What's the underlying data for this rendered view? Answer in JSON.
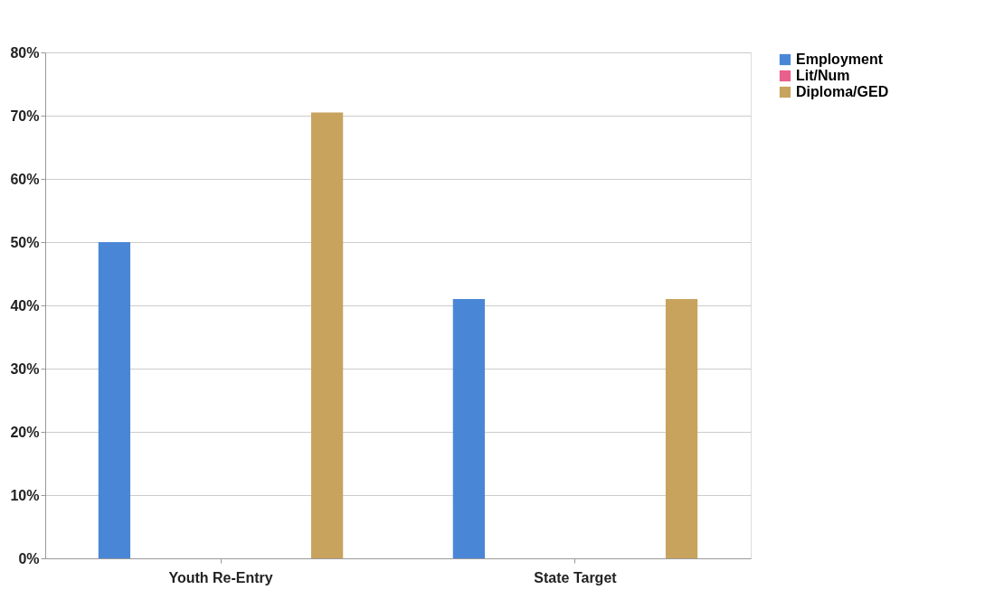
{
  "chart_data": {
    "type": "bar",
    "categories": [
      "Youth Re-Entry",
      "State Target"
    ],
    "series": [
      {
        "name": "Employment",
        "color": "#4a86d6",
        "values": [
          50,
          41
        ]
      },
      {
        "name": "Lit/Num",
        "color": "#e8608c",
        "values": [
          null,
          null
        ]
      },
      {
        "name": "Diploma/GED",
        "color": "#c8a35e",
        "values": [
          70.5,
          41
        ]
      }
    ],
    "ylim": [
      0,
      80
    ],
    "yticks": [
      {
        "value": 0,
        "label": "0%"
      },
      {
        "value": 10,
        "label": "10%"
      },
      {
        "value": 20,
        "label": "20%"
      },
      {
        "value": 30,
        "label": "30%"
      },
      {
        "value": 40,
        "label": "40%"
      },
      {
        "value": 50,
        "label": "50%"
      },
      {
        "value": 60,
        "label": "60%"
      },
      {
        "value": 70,
        "label": "70%"
      },
      {
        "value": 80,
        "label": "80%"
      }
    ],
    "grid": "y",
    "legend": "right"
  }
}
